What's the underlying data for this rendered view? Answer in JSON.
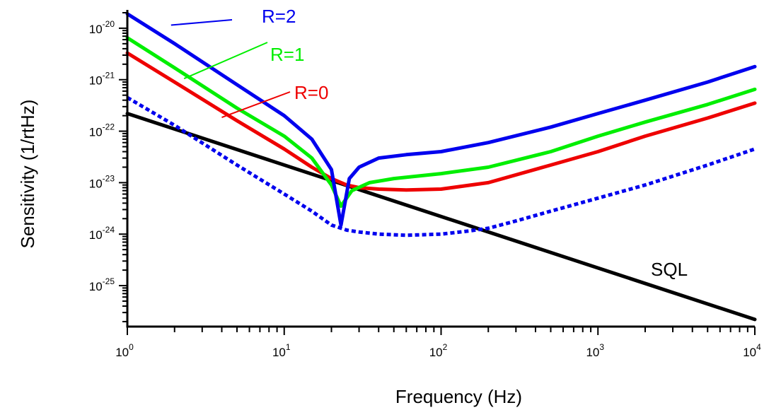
{
  "chart_data": {
    "type": "line",
    "title": "",
    "xlabel": "Frequency (Hz)",
    "ylabel": "Sensitivity (1/rtHz)",
    "x_scale": "log",
    "y_scale": "log",
    "xlim": [
      1,
      10000
    ],
    "ylim": [
      1.6e-26,
      2e-20
    ],
    "grid": false,
    "legend": "inline labels",
    "x_ticks": [
      {
        "base": "10",
        "exp": "0"
      },
      {
        "base": "10",
        "exp": "1"
      },
      {
        "base": "10",
        "exp": "2"
      },
      {
        "base": "10",
        "exp": "3"
      },
      {
        "base": "10",
        "exp": "4"
      }
    ],
    "y_ticks": [
      {
        "value": 1e-20,
        "base": "10",
        "exp": "-20"
      },
      {
        "value": 1e-21,
        "base": "10",
        "exp": "-21"
      },
      {
        "value": 1e-22,
        "base": "10",
        "exp": "-22"
      },
      {
        "value": 1e-23,
        "base": "10",
        "exp": "-23"
      },
      {
        "value": 1e-24,
        "base": "10",
        "exp": "-24"
      },
      {
        "value": 1e-25,
        "base": "10",
        "exp": "-25"
      }
    ],
    "series": [
      {
        "name": "R=2",
        "color": "#0000ee",
        "style": "solid",
        "label_x": 1,
        "x": [
          1,
          2,
          5,
          10,
          15,
          20,
          23,
          26,
          30,
          40,
          60,
          100,
          200,
          500,
          1000,
          2000,
          5000,
          10000
        ],
        "y": [
          1.9e-20,
          5e-21,
          8e-22,
          2e-22,
          7e-23,
          1.8e-23,
          1.5e-24,
          1.2e-23,
          2e-23,
          3e-23,
          3.5e-23,
          4e-23,
          6e-23,
          1.2e-22,
          2.2e-22,
          4e-22,
          9e-22,
          1.8e-21
        ]
      },
      {
        "name": "R=1",
        "color": "#00ee00",
        "style": "solid",
        "label_x": 1,
        "x": [
          1,
          2,
          5,
          10,
          15,
          20,
          23,
          27,
          35,
          50,
          100,
          200,
          500,
          1000,
          2000,
          5000,
          10000
        ],
        "y": [
          6.5e-21,
          1.7e-21,
          2.8e-22,
          8e-23,
          3e-23,
          9e-24,
          3.5e-24,
          7e-24,
          1e-23,
          1.2e-23,
          1.5e-23,
          2e-23,
          4e-23,
          8e-23,
          1.5e-22,
          3.3e-22,
          6.5e-22
        ]
      },
      {
        "name": "R=0",
        "color": "#ee0000",
        "style": "solid",
        "label_x": 1,
        "x": [
          1,
          2,
          5,
          10,
          15,
          20,
          25,
          30,
          40,
          60,
          100,
          200,
          500,
          1000,
          2000,
          5000,
          10000
        ],
        "y": [
          3.3e-21,
          9e-22,
          1.6e-22,
          4.5e-23,
          2e-23,
          1.2e-23,
          9e-24,
          8e-24,
          7.5e-24,
          7.2e-24,
          7.5e-24,
          1e-23,
          2.2e-23,
          4e-23,
          8e-23,
          1.8e-22,
          3.5e-22
        ]
      },
      {
        "name": "",
        "color": "#0000ee",
        "style": "dotted",
        "label_x": 0,
        "x": [
          1,
          2,
          5,
          10,
          15,
          20,
          25,
          30,
          40,
          60,
          100,
          150,
          200,
          300,
          500,
          1000,
          2000,
          5000,
          10000
        ],
        "y": [
          4.5e-22,
          1.3e-22,
          2.2e-23,
          6e-24,
          2.8e-24,
          1.5e-24,
          1.2e-24,
          1.1e-24,
          1e-24,
          9.5e-25,
          1e-24,
          1.15e-24,
          1.3e-24,
          1.8e-24,
          2.8e-24,
          5e-24,
          9e-24,
          2.2e-23,
          4.5e-23
        ]
      },
      {
        "name": "SQL",
        "color": "#000000",
        "style": "solid",
        "label_x": 0,
        "x": [
          1,
          10000
        ],
        "y": [
          2.2e-22,
          2.2e-26
        ]
      }
    ]
  }
}
